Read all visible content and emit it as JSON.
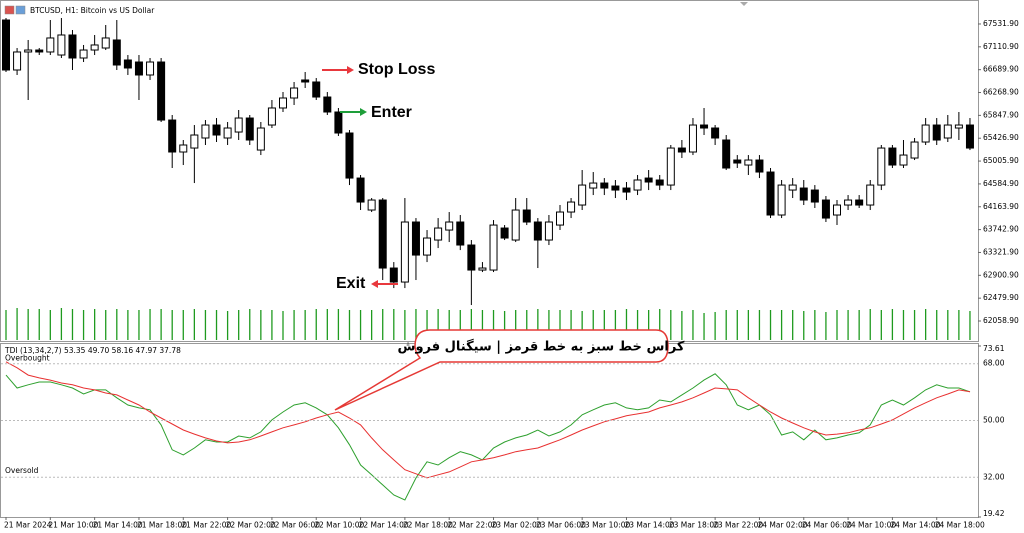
{
  "chart_data": [
    {
      "type": "candlestick",
      "title": "BTCUSD, H1: Bitcoin vs US Dollar",
      "categories": [
        "21 Mar 2024",
        null,
        null,
        null,
        "21 Mar 10:00",
        null,
        null,
        null,
        "21 Mar 14:00",
        null,
        null,
        null,
        "21 Mar 18:00",
        null,
        null,
        null,
        "21 Mar 22:00",
        null,
        null,
        null,
        "22 Mar 02:00",
        null,
        null,
        null,
        "22 Mar 06:00",
        null,
        null,
        null,
        "22 Mar 10:00",
        null,
        null,
        null,
        "22 Mar 14:00",
        null,
        null,
        null,
        "22 Mar 18:00",
        null,
        null,
        null,
        "22 Mar 22:00",
        null,
        null,
        null,
        "23 Mar 02:00",
        null,
        null,
        null,
        "23 Mar 06:00",
        null,
        null,
        null,
        "23 Mar 10:00",
        null,
        null,
        null,
        "23 Mar 14:00",
        null,
        null,
        null,
        "23 Mar 18:00",
        null,
        null,
        null,
        "23 Mar 22:00",
        null,
        null,
        null,
        "24 Mar 02:00",
        null,
        null,
        null,
        "24 Mar 06:00",
        null,
        null,
        null,
        "24 Mar 10:00",
        null,
        null,
        null,
        "24 Mar 14:00",
        null,
        null,
        null,
        "24 Mar 18:00",
        null,
        null,
        null
      ],
      "open": [
        67605,
        66684,
        67016,
        67052,
        67016,
        66960,
        67329,
        66905,
        67052,
        67089,
        67237,
        66868,
        66831,
        66592,
        66831,
        65762,
        65173,
        65246,
        65431,
        65670,
        65431,
        65541,
        65799,
        65209,
        65670,
        65984,
        66168,
        66500,
        66463,
        66186,
        65910,
        65523,
        64693,
        64104,
        64288,
        63035,
        62777,
        63883,
        63274,
        63551,
        63735,
        63883,
        63459,
        62998,
        62998,
        63772,
        63551,
        64104,
        63883,
        63551,
        63827,
        64067,
        64196,
        64509,
        64601,
        64546,
        64509,
        64472,
        64693,
        64657,
        64564,
        65246,
        65173,
        65670,
        65615,
        65394,
        65025,
        64933,
        65025,
        64804,
        64012,
        64472,
        64509,
        64472,
        64288,
        64012,
        64196,
        64288,
        64196,
        64564,
        65246,
        64933,
        65062,
        65357,
        65670,
        65431,
        65615,
        65670
      ],
      "high": [
        67642,
        67089,
        67237,
        67089,
        67605,
        67642,
        67421,
        67145,
        67329,
        67513,
        67605,
        66960,
        66960,
        66905,
        66905,
        65855,
        65394,
        65670,
        65762,
        65799,
        65726,
        65947,
        65855,
        65726,
        66131,
        66278,
        66463,
        66647,
        66536,
        66278,
        65984,
        65578,
        64749,
        64325,
        64325,
        63145,
        64325,
        63956,
        63735,
        63956,
        64067,
        64012,
        63551,
        63145,
        63919,
        63827,
        64325,
        64325,
        63956,
        64012,
        64196,
        64325,
        64841,
        64804,
        64693,
        64657,
        64620,
        64749,
        64841,
        64749,
        65302,
        65394,
        65799,
        65984,
        65670,
        65486,
        65117,
        65117,
        65117,
        64878,
        64657,
        64693,
        64657,
        64564,
        64362,
        64288,
        64380,
        64380,
        64657,
        65302,
        65302,
        65394,
        65431,
        65799,
        65799,
        65855,
        65910,
        65799
      ],
      "low": [
        66647,
        66592,
        66131,
        66960,
        66960,
        66905,
        66684,
        66831,
        66960,
        67052,
        66684,
        66592,
        66131,
        66500,
        65726,
        64878,
        64933,
        64601,
        65302,
        65357,
        65302,
        65394,
        65302,
        65117,
        65615,
        65910,
        66039,
        66352,
        66131,
        65855,
        65468,
        64564,
        64104,
        64067,
        62814,
        62666,
        62666,
        62814,
        63145,
        63403,
        63514,
        63366,
        62353,
        62961,
        62961,
        63551,
        63514,
        63827,
        63035,
        63459,
        63735,
        63956,
        64104,
        64380,
        64380,
        64325,
        64288,
        64380,
        64472,
        64472,
        64472,
        65062,
        65117,
        65486,
        65302,
        64841,
        64878,
        64749,
        64693,
        63956,
        63956,
        64325,
        64196,
        64141,
        63883,
        63827,
        64104,
        64141,
        64104,
        64472,
        64878,
        64878,
        65025,
        65302,
        65302,
        65357,
        65394,
        65209
      ],
      "close": [
        66684,
        67016,
        67052,
        67016,
        67274,
        67329,
        66905,
        67052,
        67145,
        67274,
        66776,
        66721,
        66592,
        66831,
        65762,
        65173,
        65302,
        65486,
        65670,
        65486,
        65615,
        65799,
        65394,
        65615,
        65984,
        66168,
        66352,
        66463,
        66186,
        65910,
        65523,
        64693,
        64251,
        64288,
        63035,
        62777,
        63883,
        63274,
        63588,
        63772,
        63883,
        63459,
        62998,
        63035,
        63827,
        63588,
        64104,
        63883,
        63551,
        63883,
        64067,
        64251,
        64564,
        64601,
        64509,
        64472,
        64435,
        64657,
        64620,
        64564,
        65246,
        65173,
        65670,
        65615,
        65431,
        64878,
        64970,
        65025,
        64804,
        64012,
        64564,
        64564,
        64288,
        64251,
        63956,
        64196,
        64288,
        64196,
        64564,
        65246,
        64933,
        65117,
        65357,
        65670,
        65394,
        65670,
        65670,
        65246
      ],
      "volume": [
        30,
        32,
        31,
        31,
        30,
        32,
        31,
        30,
        31,
        30,
        31,
        30,
        30,
        31,
        31,
        30,
        30,
        31,
        30,
        30,
        29,
        30,
        31,
        30,
        30,
        29,
        30,
        30,
        31,
        31,
        31,
        30,
        30,
        30,
        31,
        31,
        30,
        31,
        30,
        31,
        30,
        30,
        31,
        30,
        30,
        29,
        30,
        30,
        31,
        30,
        30,
        30,
        29,
        30,
        30,
        30,
        31,
        30,
        30,
        31,
        30,
        29,
        30,
        27,
        28,
        30,
        30,
        30,
        30,
        30,
        30,
        30,
        29,
        30,
        28,
        30,
        30,
        30,
        31,
        30,
        31,
        30,
        30,
        31,
        30,
        30,
        30,
        29
      ],
      "volume_color": "#1f9a1f",
      "ylim": [
        61709,
        67900
      ],
      "yticks": [
        {
          "value": 67531.9,
          "label": "67531.90"
        },
        {
          "value": 67110.9,
          "label": "67110.90"
        },
        {
          "value": 66689.9,
          "label": "66689.90"
        },
        {
          "value": 66268.9,
          "label": "66268.90"
        },
        {
          "value": 65847.9,
          "label": "65847.90"
        },
        {
          "value": 65426.9,
          "label": "65426.90"
        },
        {
          "value": 65005.9,
          "label": "65005.90"
        },
        {
          "value": 64584.9,
          "label": "64584.90"
        },
        {
          "value": 64163.9,
          "label": "64163.90"
        },
        {
          "value": 63742.9,
          "label": "63742.90"
        },
        {
          "value": 63321.9,
          "label": "63321.90"
        },
        {
          "value": 62900.9,
          "label": "62900.90"
        },
        {
          "value": 62479.9,
          "label": "62479.90"
        },
        {
          "value": 62058.9,
          "label": "62058.90"
        }
      ],
      "annotations": [
        {
          "text": "Stop Loss",
          "color": "#e8383d"
        },
        {
          "text": "Enter",
          "color": "#1e9e3a"
        },
        {
          "text": "Exit",
          "color": "#1f3fd8"
        }
      ]
    },
    {
      "type": "line",
      "title": "TDI (13,34,2,7) 53.35 49.70 58.16 47.97 37.78",
      "level_labels": [
        "Overbought",
        "Oversold"
      ],
      "annotation": "کراس خط سبز به خط قرمز | سیگنال فروش",
      "series": [
        {
          "color": "#2ea02e",
          "values": [
            64.4,
            60.3,
            61.3,
            62.2,
            62.2,
            61.3,
            60.3,
            58.4,
            59.7,
            59.7,
            57.2,
            54.9,
            54.0,
            53.4,
            48.6,
            40.7,
            39.1,
            41.3,
            43.9,
            43.2,
            43.2,
            45.1,
            44.5,
            46.4,
            50.2,
            52.7,
            54.9,
            55.6,
            54.0,
            51.8,
            47.7,
            42.3,
            35.9,
            32.8,
            29.6,
            26.4,
            24.8,
            31.8,
            36.9,
            35.9,
            38.2,
            40.1,
            39.1,
            37.5,
            41.3,
            43.2,
            44.5,
            45.4,
            47.0,
            45.1,
            46.4,
            48.6,
            51.8,
            53.4,
            54.9,
            55.6,
            54.0,
            53.4,
            54.0,
            56.5,
            55.9,
            58.1,
            60.3,
            62.8,
            64.8,
            61.3,
            54.9,
            53.4,
            54.9,
            51.8,
            45.4,
            46.4,
            43.9,
            47.0,
            43.9,
            44.5,
            45.4,
            46.1,
            48.6,
            54.9,
            56.5,
            54.9,
            57.2,
            59.7,
            61.3,
            60.3,
            60.3,
            59.1
          ]
        },
        {
          "color": "#e83030",
          "values": [
            68.6,
            66.7,
            64.4,
            63.5,
            62.8,
            61.9,
            61.3,
            60.3,
            59.7,
            58.7,
            58.1,
            56.5,
            54.9,
            52.7,
            50.8,
            48.9,
            47.0,
            45.7,
            44.5,
            43.5,
            42.9,
            43.2,
            43.9,
            45.1,
            46.4,
            47.7,
            48.6,
            49.6,
            50.8,
            51.8,
            52.7,
            50.8,
            48.6,
            44.5,
            40.7,
            37.5,
            34.4,
            33.1,
            31.8,
            32.8,
            33.7,
            35.3,
            36.9,
            37.5,
            38.2,
            39.1,
            40.1,
            40.7,
            41.3,
            42.6,
            43.9,
            45.4,
            47.0,
            48.3,
            49.6,
            50.5,
            51.5,
            52.1,
            52.7,
            54.0,
            54.9,
            55.9,
            57.2,
            58.7,
            60.3,
            60.0,
            59.7,
            57.2,
            54.9,
            52.7,
            50.8,
            49.2,
            47.7,
            46.4,
            45.4,
            45.7,
            46.1,
            47.0,
            47.7,
            48.9,
            50.2,
            52.1,
            54.0,
            55.6,
            57.2,
            58.4,
            59.7,
            59.1
          ]
        }
      ],
      "ylim": [
        19.42,
        73.61
      ],
      "yticks": [
        73.61,
        {
          "value": 68,
          "label": "68.00"
        },
        {
          "value": 50,
          "label": "50.00"
        },
        {
          "value": 32,
          "label": "32.00"
        },
        19.42
      ]
    }
  ]
}
